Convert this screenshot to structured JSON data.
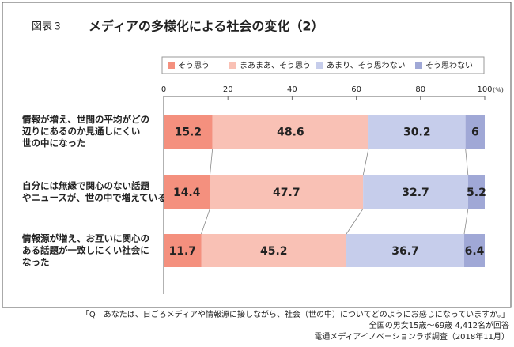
{
  "chart_data": {
    "type": "stacked-barh",
    "figure_label": "図表３",
    "title": "メディアの多様化による社会の変化（2）",
    "unit": "(%)",
    "categories": [
      [
        "情報が増え、世間の平均がどの",
        "辺りにあるのか見通しにくい",
        "世の中になった"
      ],
      [
        "自分には無縁で関心のない話題",
        "やニュースが、世の中で増えている"
      ],
      [
        "情報源が増え、お互いに関心の",
        "ある話題が一致しにくい社会に",
        "なった"
      ]
    ],
    "series": [
      {
        "name": "そう思う",
        "color": "#f4907e",
        "values": [
          15.2,
          14.4,
          11.7
        ]
      },
      {
        "name": "まあまあ、そう思う",
        "color": "#f9c1b5",
        "values": [
          48.6,
          47.7,
          45.2
        ]
      },
      {
        "name": "あまり、そう思わない",
        "color": "#c6cdeb",
        "values": [
          30.2,
          32.7,
          36.7
        ]
      },
      {
        "name": "そう思わない",
        "color": "#a0a8d6",
        "values": [
          6.0,
          5.2,
          6.4
        ]
      }
    ],
    "xlim": [
      0,
      100
    ],
    "xticks": [
      0,
      20,
      40,
      60,
      80,
      100
    ],
    "notes": [
      "「Q　あなたは、日ごろメディアや情報源に接しながら、社会（世の中）についてどのようにお感じになっていますか。」",
      "全国の男女15歳～69歳 4,412名が回答",
      "電通メディアイノベーションラボ調査（2018年11月）"
    ]
  }
}
